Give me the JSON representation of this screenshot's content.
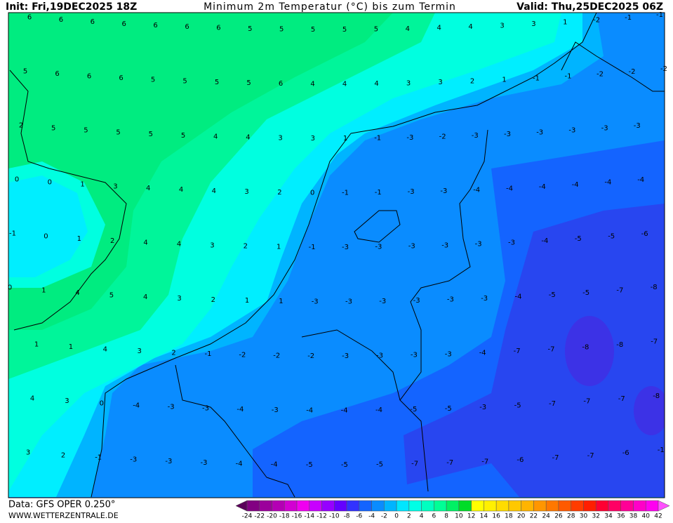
{
  "header": {
    "init": "Init: Fri,19DEC2025 18Z",
    "title": "Minimum 2m Temperatur (°C) bis zum Termin",
    "valid": "Valid: Thu,25DEC2025 06Z"
  },
  "map": {
    "rows": [
      [
        6,
        6,
        6,
        6,
        6,
        6,
        6,
        5,
        5,
        5,
        5,
        5,
        4,
        4,
        4,
        3,
        3,
        1,
        -2,
        -1,
        -1
      ],
      [
        5,
        6,
        6,
        6,
        5,
        5,
        5,
        5,
        6,
        4,
        4,
        4,
        3,
        3,
        2,
        1,
        -1,
        -1,
        -2,
        -2,
        -2
      ],
      [
        2,
        5,
        5,
        5,
        5,
        5,
        4,
        4,
        3,
        3,
        1,
        -1,
        -3,
        -2,
        -3,
        -3,
        -3,
        -3,
        -3,
        -3
      ],
      [
        0,
        0,
        1,
        3,
        4,
        4,
        4,
        3,
        2,
        0,
        -1,
        -1,
        -3,
        -3,
        -4,
        -4,
        -4,
        -4,
        -4,
        -4
      ],
      [
        -1,
        0,
        1,
        2,
        4,
        4,
        3,
        2,
        1,
        -1,
        -3,
        -3,
        -3,
        -3,
        -3,
        -3,
        -4,
        -5,
        -5,
        -6
      ],
      [
        0,
        1,
        4,
        5,
        4,
        3,
        2,
        1,
        1,
        -3,
        -3,
        -3,
        -3,
        -3,
        -3,
        -4,
        -5,
        -5,
        -7,
        -8
      ],
      [
        1,
        1,
        4,
        3,
        2,
        -1,
        -2,
        -2,
        -2,
        -3,
        -3,
        -3,
        -3,
        -4,
        -7,
        -7,
        -8,
        -8,
        -7
      ],
      [
        4,
        3,
        0,
        -4,
        -3,
        -3,
        -4,
        -3,
        -4,
        -4,
        -4,
        -5,
        -5,
        -3,
        -5,
        -7,
        -7,
        -7,
        -8
      ],
      [
        3,
        2,
        -1,
        -3,
        -3,
        -3,
        -4,
        -4,
        -5,
        -5,
        -5,
        -7,
        -7,
        -7,
        -6,
        -7,
        -7,
        -6,
        -1
      ]
    ]
  },
  "footer": {
    "data": "Data: GFS OPER 0.250°",
    "site": "WWW.WETTERZENTRALE.DE"
  },
  "colorbar": {
    "labels": [
      -24,
      -22,
      -20,
      -18,
      -16,
      -14,
      -12,
      -10,
      -8,
      -6,
      -4,
      -2,
      0,
      2,
      4,
      6,
      8,
      10,
      12,
      14,
      16,
      18,
      20,
      22,
      24,
      26,
      28,
      30,
      32,
      34,
      36,
      38,
      40,
      42
    ]
  }
}
